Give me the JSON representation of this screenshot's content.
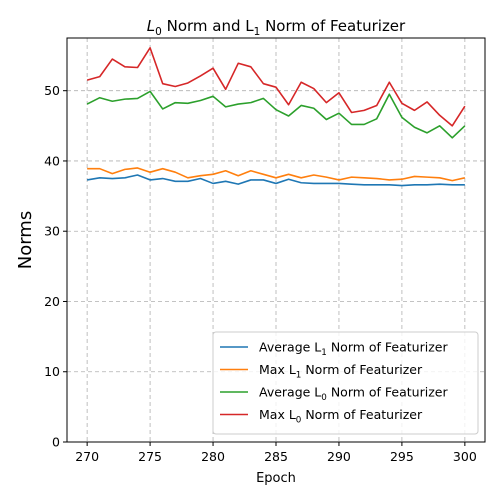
{
  "chart_data": {
    "type": "line",
    "title": {
      "prefix": "L",
      "sub1": "0",
      "middle": " Norm and L",
      "sub2": "1",
      "suffix": " Norm of Featurizer"
    },
    "xlabel": "Epoch",
    "ylabel": "Norms",
    "xlim": [
      268.4,
      301.6
    ],
    "ylim": [
      0,
      57.5
    ],
    "xticks": [
      270,
      275,
      280,
      285,
      290,
      295,
      300
    ],
    "yticks": [
      0,
      10,
      20,
      30,
      40,
      50
    ],
    "grid": true,
    "legend_position": "lower-right",
    "x": [
      270,
      271,
      272,
      273,
      274,
      275,
      276,
      277,
      278,
      279,
      280,
      281,
      282,
      283,
      284,
      285,
      286,
      287,
      288,
      289,
      290,
      291,
      292,
      293,
      294,
      295,
      296,
      297,
      298,
      299,
      300
    ],
    "series": [
      {
        "name": "Average L1 Norm of Featurizer",
        "legend": {
          "before": "Average L",
          "sub": "1",
          "after": " Norm of Featurizer"
        },
        "color": "#1f77b4",
        "values": [
          37.3,
          37.6,
          37.5,
          37.6,
          38.0,
          37.3,
          37.5,
          37.1,
          37.1,
          37.5,
          36.8,
          37.1,
          36.7,
          37.3,
          37.3,
          36.8,
          37.4,
          36.9,
          36.8,
          36.8,
          36.8,
          36.7,
          36.6,
          36.6,
          36.6,
          36.5,
          36.6,
          36.6,
          36.7,
          36.6,
          36.6
        ]
      },
      {
        "name": "Max L1 Norm of Featurizer",
        "legend": {
          "before": "Max L",
          "sub": "1",
          "after": " Norm of Featurizer"
        },
        "color": "#ff7f0e",
        "values": [
          38.9,
          38.9,
          38.2,
          38.8,
          39.0,
          38.4,
          38.9,
          38.4,
          37.6,
          37.9,
          38.1,
          38.6,
          37.9,
          38.6,
          38.1,
          37.6,
          38.1,
          37.6,
          38.0,
          37.7,
          37.3,
          37.7,
          37.6,
          37.5,
          37.3,
          37.4,
          37.8,
          37.7,
          37.6,
          37.2,
          37.6
        ]
      },
      {
        "name": "Average L0 Norm of Featurizer",
        "legend": {
          "before": "Average L",
          "sub": "0",
          "after": " Norm of Featurizer"
        },
        "color": "#2ca02c",
        "values": [
          48.1,
          49.0,
          48.5,
          48.8,
          48.9,
          49.9,
          47.4,
          48.3,
          48.2,
          48.6,
          49.2,
          47.7,
          48.1,
          48.3,
          48.9,
          47.3,
          46.4,
          47.9,
          47.5,
          45.9,
          46.8,
          45.2,
          45.2,
          46.0,
          49.5,
          46.2,
          44.8,
          44.0,
          45.0,
          43.3,
          45.0
        ]
      },
      {
        "name": "Max L0 Norm of Featurizer",
        "legend": {
          "before": "Max L",
          "sub": "0",
          "after": " Norm of Featurizer"
        },
        "color": "#d62728",
        "values": [
          51.5,
          52.0,
          54.5,
          53.4,
          53.3,
          56.1,
          51.0,
          50.6,
          51.1,
          52.1,
          53.2,
          50.2,
          53.9,
          53.4,
          51.0,
          50.5,
          48.0,
          51.2,
          50.3,
          48.3,
          49.7,
          46.9,
          47.2,
          47.9,
          51.2,
          48.2,
          47.2,
          48.4,
          46.5,
          45.0,
          47.8
        ]
      }
    ]
  }
}
